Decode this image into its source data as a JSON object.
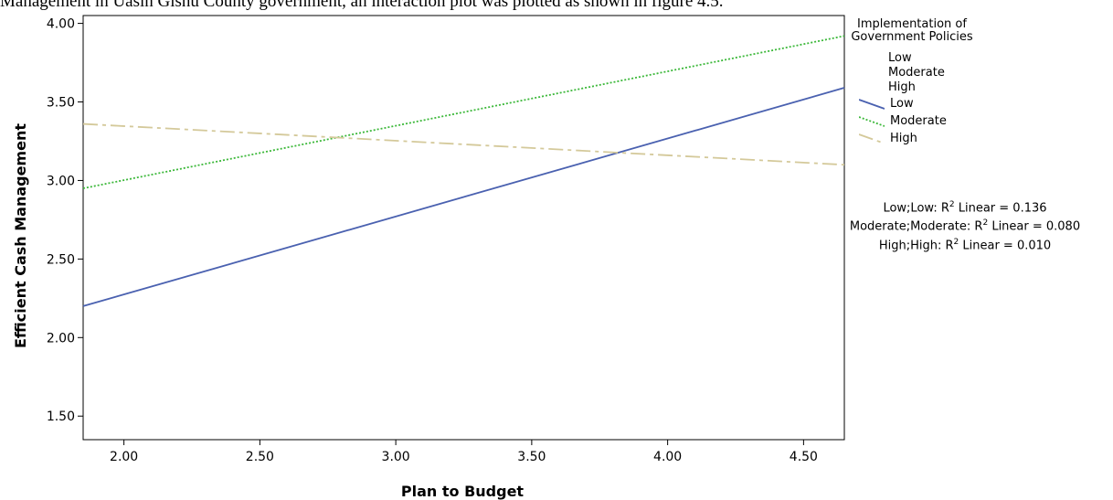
{
  "caption": "Management in Uasin Gishu County government, an interaction plot was plotted as shown in figure 4.5.",
  "chart_data": {
    "type": "line",
    "xlabel": "Plan to Budget",
    "ylabel": "Efficient Cash Management",
    "xlim": [
      1.85,
      4.65
    ],
    "ylim": [
      1.35,
      4.05
    ],
    "x_ticks": [
      "2.00",
      "2.50",
      "3.00",
      "3.50",
      "4.00",
      "4.50"
    ],
    "y_ticks": [
      "1.50",
      "2.00",
      "2.50",
      "3.00",
      "3.50",
      "4.00"
    ],
    "grid": false,
    "legend": {
      "title": "Implementation of Government Policies",
      "category_labels": [
        "Low",
        "Moderate",
        "High"
      ],
      "placement": "right"
    },
    "series": [
      {
        "name": "Low",
        "color": "#4a61b0",
        "style": "solid",
        "x": [
          1.85,
          4.65
        ],
        "y": [
          2.2,
          3.59
        ]
      },
      {
        "name": "Moderate",
        "color": "#3cb83a",
        "style": "dotted",
        "x": [
          1.85,
          4.65
        ],
        "y": [
          2.95,
          3.92
        ]
      },
      {
        "name": "High",
        "color": "#d4c99a",
        "style": "dashdot",
        "x": [
          1.85,
          4.65
        ],
        "y": [
          3.36,
          3.1
        ]
      }
    ],
    "annotations": [
      {
        "prefix": "Low;Low: R",
        "sup": "2",
        "suffix": " Linear = 0.136"
      },
      {
        "prefix": "Moderate;Moderate: R",
        "sup": "2",
        "suffix": " Linear = 0.080"
      },
      {
        "prefix": "High;High: R",
        "sup": "2",
        "suffix": " Linear = 0.010"
      }
    ]
  }
}
